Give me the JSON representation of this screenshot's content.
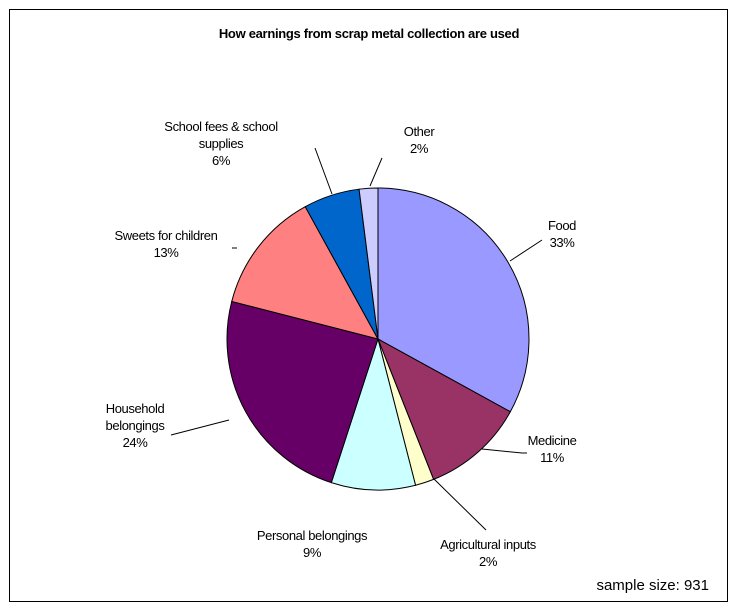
{
  "chart_data": {
    "type": "pie",
    "title": "How earnings from scrap metal collection are used",
    "note": "sample size: 931",
    "slices": [
      {
        "label_lines": [
          "Food"
        ],
        "value_label": "33%",
        "value": 33,
        "color": "#9999ff"
      },
      {
        "label_lines": [
          "Medicine"
        ],
        "value_label": "11%",
        "value": 11,
        "color": "#993366"
      },
      {
        "label_lines": [
          "Agricultural inputs"
        ],
        "value_label": "2%",
        "value": 2,
        "color": "#ffffcc"
      },
      {
        "label_lines": [
          "Personal belongings"
        ],
        "value_label": "9%",
        "value": 9,
        "color": "#ccffff"
      },
      {
        "label_lines": [
          "Household",
          "belongings"
        ],
        "value_label": "24%",
        "value": 24,
        "color": "#660066"
      },
      {
        "label_lines": [
          "Sweets for children"
        ],
        "value_label": "13%",
        "value": 13,
        "color": "#ff8080"
      },
      {
        "label_lines": [
          "School fees & school",
          "supplies"
        ],
        "value_label": "6%",
        "value": 6,
        "color": "#0066cc"
      },
      {
        "label_lines": [
          "Other"
        ],
        "value_label": "2%",
        "value": 2,
        "color": "#ccccff"
      }
    ]
  }
}
